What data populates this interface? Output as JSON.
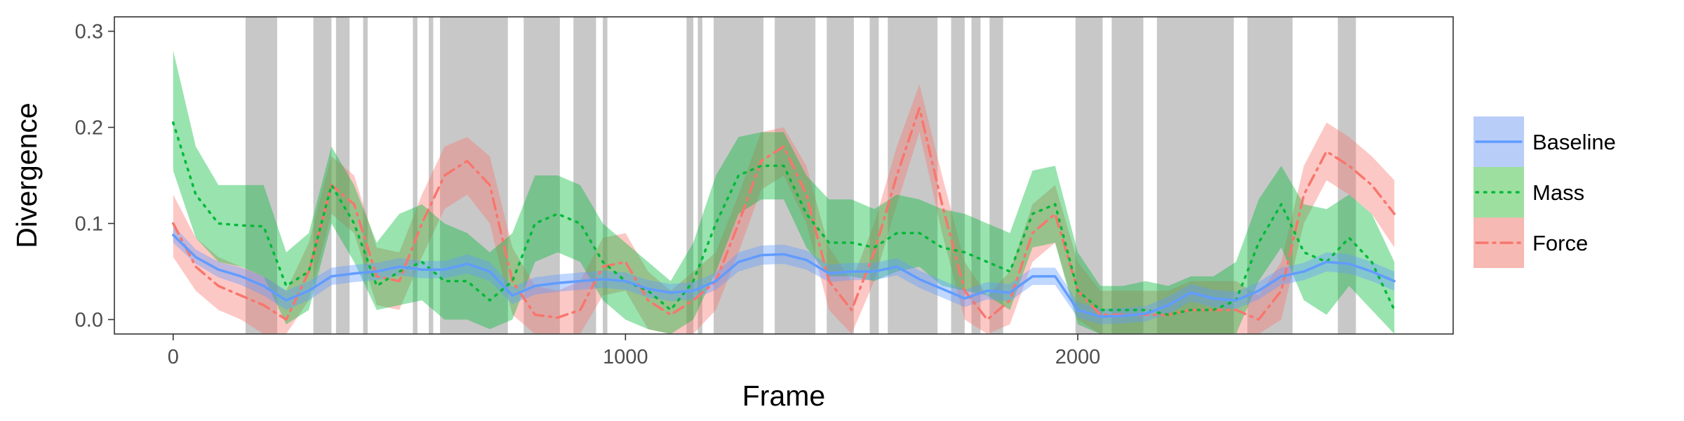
{
  "chart_data": {
    "type": "line",
    "xlabel": "Frame",
    "ylabel": "Divergence",
    "xlim": [
      -130,
      2830
    ],
    "ylim": [
      -0.015,
      0.315
    ],
    "x_ticks": [
      0,
      1000,
      2000
    ],
    "x_tick_labels": [
      "0",
      "1000",
      "2000"
    ],
    "y_ticks": [
      0.0,
      0.1,
      0.2,
      0.3
    ],
    "y_tick_labels": [
      "0.0",
      "0.1",
      "0.2",
      "0.3"
    ],
    "grid": false,
    "legend_position": "right",
    "shaded_intervals": [
      [
        160,
        230
      ],
      [
        310,
        350
      ],
      [
        360,
        390
      ],
      [
        420,
        430
      ],
      [
        530,
        540
      ],
      [
        565,
        575
      ],
      [
        590,
        740
      ],
      [
        775,
        855
      ],
      [
        885,
        935
      ],
      [
        950,
        960
      ],
      [
        1135,
        1150
      ],
      [
        1160,
        1170
      ],
      [
        1195,
        1305
      ],
      [
        1330,
        1420
      ],
      [
        1445,
        1505
      ],
      [
        1540,
        1560
      ],
      [
        1580,
        1690
      ],
      [
        1720,
        1750
      ],
      [
        1765,
        1785
      ],
      [
        1805,
        1835
      ],
      [
        1995,
        2055
      ],
      [
        2075,
        2145
      ],
      [
        2175,
        2345
      ],
      [
        2375,
        2475
      ],
      [
        2575,
        2615
      ]
    ],
    "series": [
      {
        "name": "Baseline",
        "style": "solid",
        "color": "#619CFF",
        "fill": "#b9cdf9",
        "x": [
          0,
          50,
          100,
          150,
          200,
          250,
          300,
          350,
          400,
          450,
          500,
          550,
          600,
          650,
          700,
          750,
          800,
          850,
          900,
          950,
          1000,
          1050,
          1100,
          1150,
          1200,
          1250,
          1300,
          1350,
          1400,
          1450,
          1500,
          1550,
          1600,
          1650,
          1700,
          1750,
          1800,
          1850,
          1900,
          1950,
          2000,
          2050,
          2100,
          2150,
          2200,
          2250,
          2300,
          2350,
          2400,
          2450,
          2500,
          2550,
          2600,
          2650,
          2700
        ],
        "y": [
          0.088,
          0.065,
          0.052,
          0.045,
          0.035,
          0.02,
          0.03,
          0.045,
          0.048,
          0.05,
          0.055,
          0.052,
          0.052,
          0.058,
          0.05,
          0.025,
          0.035,
          0.038,
          0.04,
          0.042,
          0.04,
          0.032,
          0.028,
          0.03,
          0.04,
          0.06,
          0.067,
          0.068,
          0.062,
          0.048,
          0.05,
          0.05,
          0.055,
          0.042,
          0.032,
          0.022,
          0.03,
          0.028,
          0.045,
          0.045,
          0.01,
          0.003,
          0.004,
          0.006,
          0.015,
          0.028,
          0.022,
          0.02,
          0.03,
          0.045,
          0.05,
          0.06,
          0.058,
          0.05,
          0.04
        ],
        "lower": [
          0.08,
          0.058,
          0.044,
          0.036,
          0.025,
          0.01,
          0.02,
          0.036,
          0.039,
          0.041,
          0.046,
          0.043,
          0.043,
          0.048,
          0.04,
          0.016,
          0.026,
          0.029,
          0.031,
          0.033,
          0.031,
          0.023,
          0.019,
          0.021,
          0.031,
          0.05,
          0.057,
          0.058,
          0.052,
          0.039,
          0.041,
          0.041,
          0.046,
          0.033,
          0.023,
          0.013,
          0.021,
          0.019,
          0.036,
          0.036,
          0.002,
          -0.005,
          -0.004,
          -0.002,
          0.006,
          0.019,
          0.013,
          0.011,
          0.021,
          0.036,
          0.041,
          0.05,
          0.048,
          0.04,
          0.03
        ],
        "upper": [
          0.098,
          0.073,
          0.06,
          0.054,
          0.045,
          0.03,
          0.04,
          0.054,
          0.057,
          0.059,
          0.064,
          0.061,
          0.061,
          0.068,
          0.06,
          0.034,
          0.044,
          0.047,
          0.049,
          0.051,
          0.049,
          0.041,
          0.037,
          0.039,
          0.049,
          0.07,
          0.077,
          0.078,
          0.072,
          0.057,
          0.059,
          0.059,
          0.064,
          0.051,
          0.041,
          0.031,
          0.039,
          0.037,
          0.054,
          0.054,
          0.018,
          0.011,
          0.012,
          0.014,
          0.024,
          0.037,
          0.031,
          0.029,
          0.039,
          0.054,
          0.059,
          0.07,
          0.068,
          0.06,
          0.05
        ]
      },
      {
        "name": "Mass",
        "style": "dotted",
        "color": "#00BA38",
        "fill": "#9ddf9f",
        "x": [
          0,
          50,
          100,
          150,
          200,
          250,
          300,
          350,
          400,
          450,
          500,
          550,
          600,
          650,
          700,
          750,
          800,
          850,
          900,
          950,
          1000,
          1050,
          1100,
          1150,
          1200,
          1250,
          1300,
          1350,
          1400,
          1450,
          1500,
          1550,
          1600,
          1650,
          1700,
          1750,
          1800,
          1850,
          1900,
          1950,
          2000,
          2050,
          2100,
          2150,
          2200,
          2250,
          2300,
          2350,
          2400,
          2450,
          2500,
          2550,
          2600,
          2650,
          2700
        ],
        "y": [
          0.205,
          0.13,
          0.1,
          0.098,
          0.097,
          0.035,
          0.05,
          0.14,
          0.1,
          0.035,
          0.05,
          0.06,
          0.04,
          0.04,
          0.02,
          0.04,
          0.1,
          0.11,
          0.1,
          0.06,
          0.04,
          0.03,
          0.01,
          0.04,
          0.1,
          0.15,
          0.16,
          0.16,
          0.11,
          0.08,
          0.08,
          0.075,
          0.09,
          0.09,
          0.075,
          0.07,
          0.06,
          0.05,
          0.11,
          0.12,
          0.03,
          0.01,
          0.01,
          0.01,
          0.005,
          0.01,
          0.01,
          0.02,
          0.08,
          0.12,
          0.07,
          0.06,
          0.085,
          0.06,
          0.01
        ],
        "lower": [
          0.155,
          0.085,
          0.06,
          0.055,
          0.045,
          -0.005,
          0.01,
          0.1,
          0.06,
          0.01,
          0.015,
          0.02,
          0.0,
          0.0,
          -0.01,
          0.0,
          0.06,
          0.07,
          0.06,
          0.02,
          0.0,
          -0.01,
          -0.015,
          0.0,
          0.05,
          0.11,
          0.125,
          0.125,
          0.075,
          0.045,
          0.045,
          0.04,
          0.05,
          0.055,
          0.035,
          0.03,
          0.025,
          0.01,
          0.075,
          0.08,
          -0.005,
          -0.015,
          -0.015,
          -0.015,
          -0.015,
          -0.015,
          -0.015,
          -0.015,
          0.04,
          0.075,
          0.02,
          0.005,
          0.035,
          0.01,
          -0.015
        ],
        "upper": [
          0.28,
          0.18,
          0.14,
          0.14,
          0.14,
          0.07,
          0.09,
          0.18,
          0.14,
          0.08,
          0.11,
          0.12,
          0.1,
          0.09,
          0.07,
          0.09,
          0.15,
          0.15,
          0.14,
          0.1,
          0.08,
          0.06,
          0.04,
          0.08,
          0.15,
          0.19,
          0.195,
          0.195,
          0.15,
          0.125,
          0.125,
          0.115,
          0.13,
          0.125,
          0.115,
          0.11,
          0.1,
          0.09,
          0.155,
          0.16,
          0.07,
          0.035,
          0.035,
          0.04,
          0.035,
          0.045,
          0.045,
          0.06,
          0.125,
          0.16,
          0.12,
          0.115,
          0.13,
          0.11,
          0.06
        ]
      },
      {
        "name": "Force",
        "style": "dashdot",
        "color": "#F8766D",
        "fill": "#f7b9b3",
        "x": [
          0,
          50,
          100,
          150,
          200,
          250,
          300,
          350,
          400,
          450,
          500,
          550,
          600,
          650,
          700,
          750,
          800,
          850,
          900,
          950,
          1000,
          1050,
          1100,
          1150,
          1200,
          1250,
          1300,
          1350,
          1400,
          1450,
          1500,
          1550,
          1600,
          1650,
          1700,
          1750,
          1800,
          1850,
          1900,
          1950,
          2000,
          2050,
          2100,
          2150,
          2200,
          2250,
          2300,
          2350,
          2400,
          2450,
          2500,
          2550,
          2600,
          2650,
          2700
        ],
        "y": [
          0.1,
          0.055,
          0.035,
          0.025,
          0.015,
          0.0,
          0.05,
          0.14,
          0.12,
          0.045,
          0.04,
          0.1,
          0.15,
          0.165,
          0.14,
          0.04,
          0.005,
          0.002,
          0.01,
          0.055,
          0.06,
          0.02,
          0.005,
          0.02,
          0.04,
          0.1,
          0.165,
          0.18,
          0.13,
          0.04,
          0.01,
          0.07,
          0.15,
          0.22,
          0.12,
          0.03,
          0.0,
          0.02,
          0.09,
          0.11,
          0.03,
          0.005,
          0.005,
          0.005,
          0.005,
          0.01,
          0.01,
          0.01,
          0.0,
          0.03,
          0.13,
          0.175,
          0.16,
          0.14,
          0.11
        ],
        "lower": [
          0.065,
          0.03,
          0.01,
          0.0,
          -0.015,
          -0.015,
          0.02,
          0.11,
          0.09,
          0.015,
          0.01,
          0.065,
          0.115,
          0.13,
          0.1,
          0.005,
          -0.015,
          -0.015,
          -0.015,
          0.025,
          0.03,
          -0.01,
          -0.015,
          -0.015,
          0.01,
          0.07,
          0.135,
          0.15,
          0.1,
          0.01,
          -0.015,
          0.04,
          0.12,
          0.195,
          0.09,
          0.0,
          -0.015,
          -0.005,
          0.06,
          0.08,
          0.0,
          -0.015,
          -0.015,
          -0.015,
          -0.015,
          -0.015,
          -0.015,
          -0.015,
          -0.015,
          0.0,
          0.1,
          0.145,
          0.13,
          0.11,
          0.075
        ],
        "upper": [
          0.13,
          0.085,
          0.065,
          0.055,
          0.045,
          0.03,
          0.08,
          0.17,
          0.15,
          0.075,
          0.07,
          0.13,
          0.18,
          0.19,
          0.17,
          0.075,
          0.035,
          0.03,
          0.04,
          0.085,
          0.09,
          0.05,
          0.03,
          0.05,
          0.07,
          0.13,
          0.195,
          0.2,
          0.16,
          0.075,
          0.04,
          0.1,
          0.18,
          0.245,
          0.15,
          0.06,
          0.025,
          0.05,
          0.12,
          0.14,
          0.06,
          0.03,
          0.03,
          0.03,
          0.03,
          0.04,
          0.04,
          0.04,
          0.025,
          0.06,
          0.16,
          0.205,
          0.19,
          0.17,
          0.145
        ]
      }
    ]
  }
}
